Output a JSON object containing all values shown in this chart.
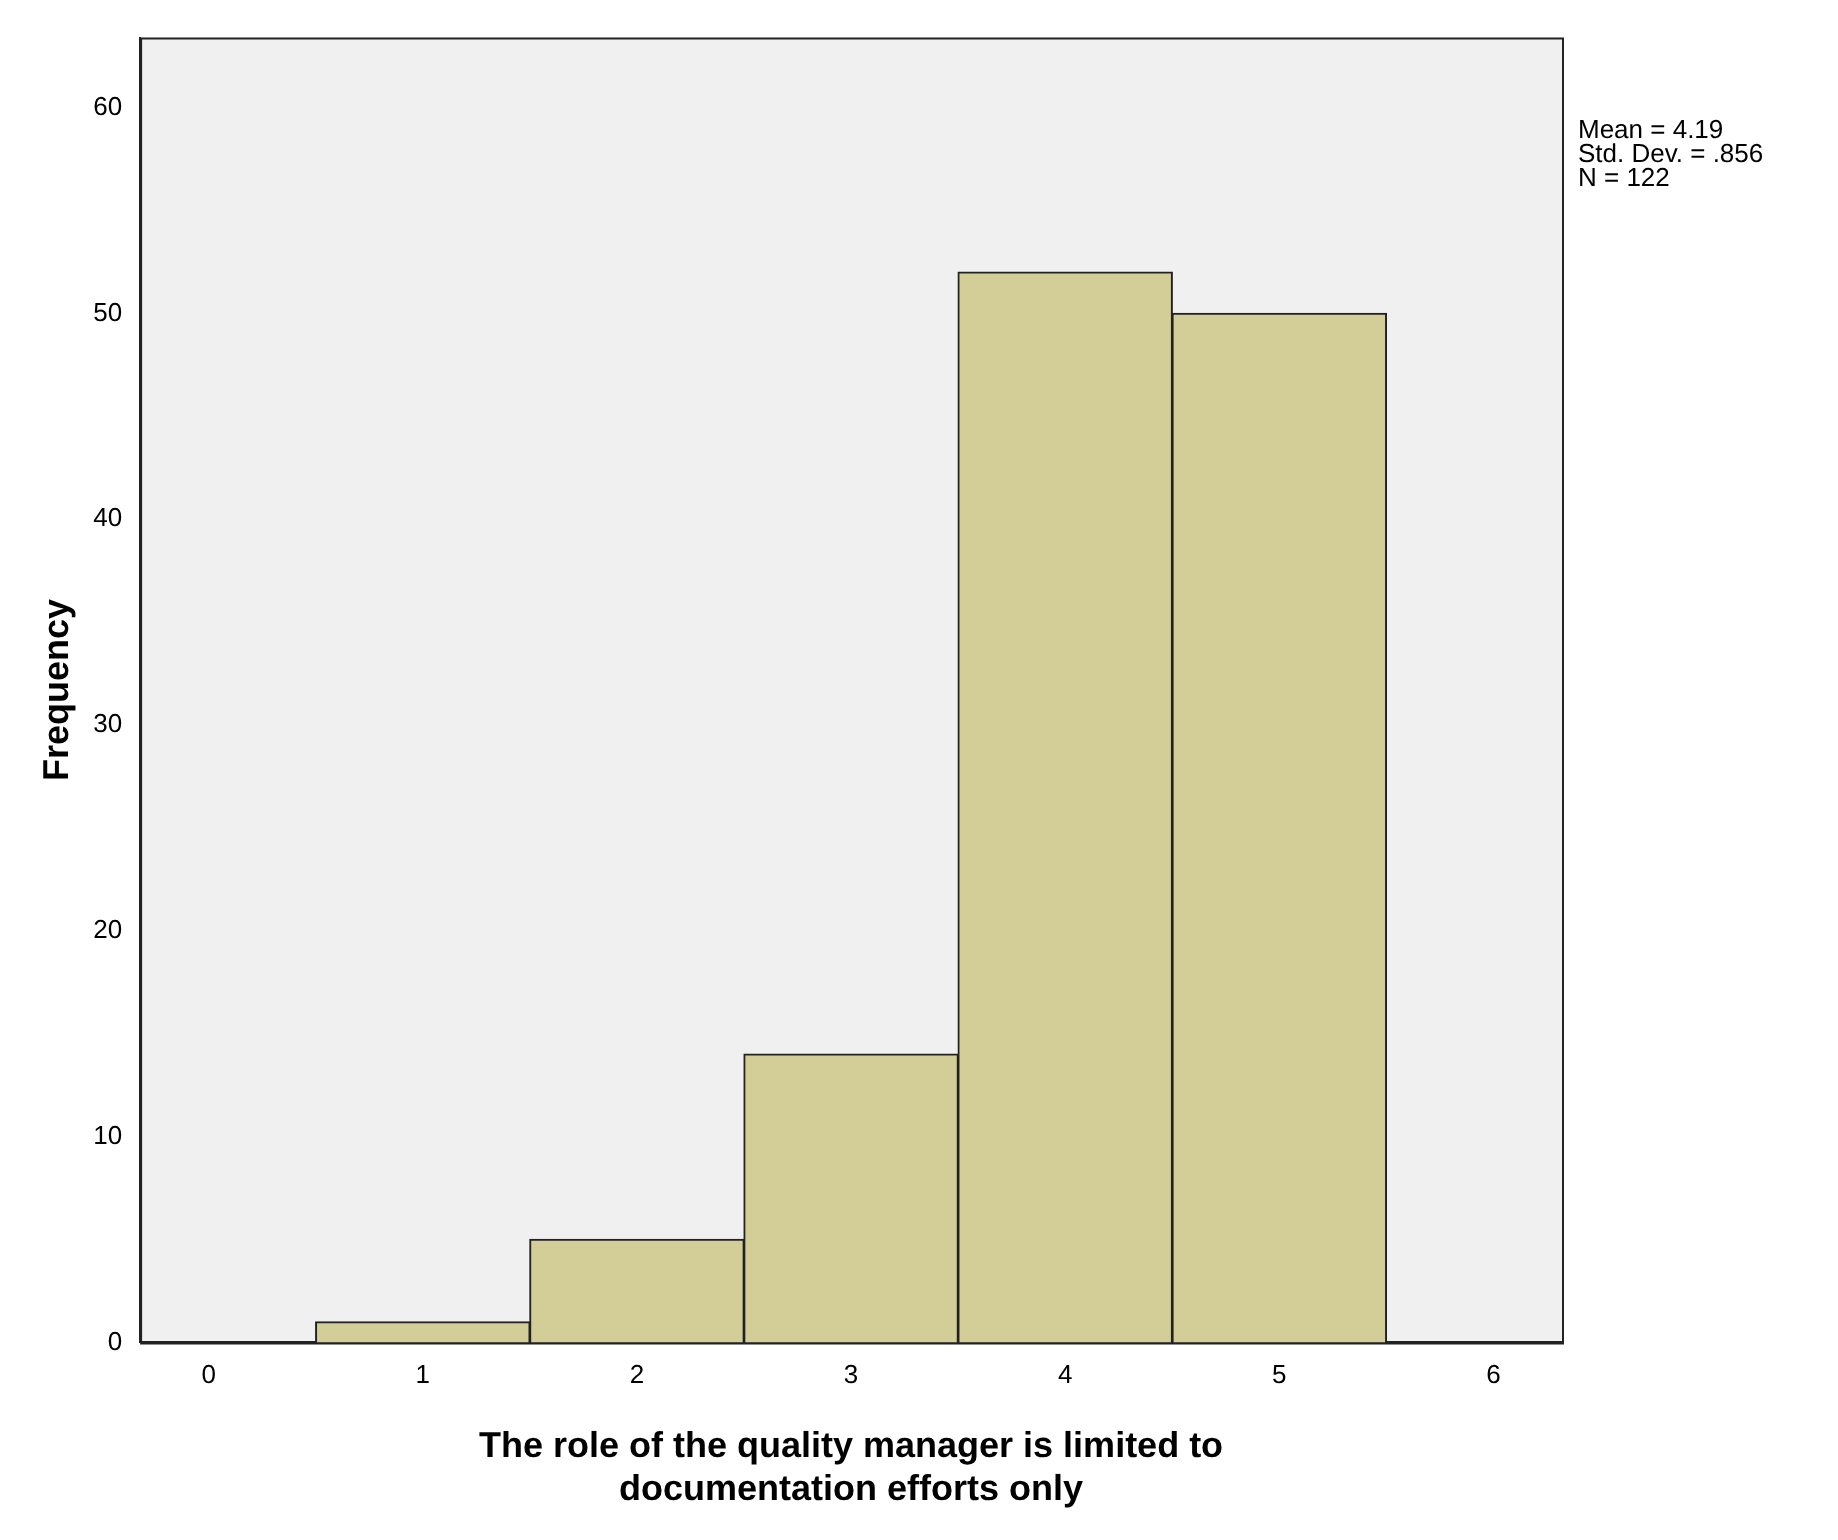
{
  "chart_data": {
    "type": "histogram",
    "xlabel": "The role of the quality manager is limited to documentation efforts only",
    "ylabel": "Frequency",
    "bins": [
      0.5,
      1.5,
      2.5,
      3.5,
      4.5,
      5.5
    ],
    "values": [
      1,
      5,
      14,
      52,
      50
    ],
    "color": "#d3ce98",
    "xlim": [
      -0.32,
      6.32
    ],
    "xticks": [
      0,
      1,
      2,
      3,
      4,
      5,
      6
    ],
    "ylim": [
      0,
      63.4
    ],
    "yticks": [
      0,
      10,
      20,
      30,
      40,
      50,
      60
    ],
    "grid": false,
    "legend": false,
    "annotations": [
      "Mean = 4.19",
      "Std. Dev. = .856",
      "N = 122"
    ]
  }
}
